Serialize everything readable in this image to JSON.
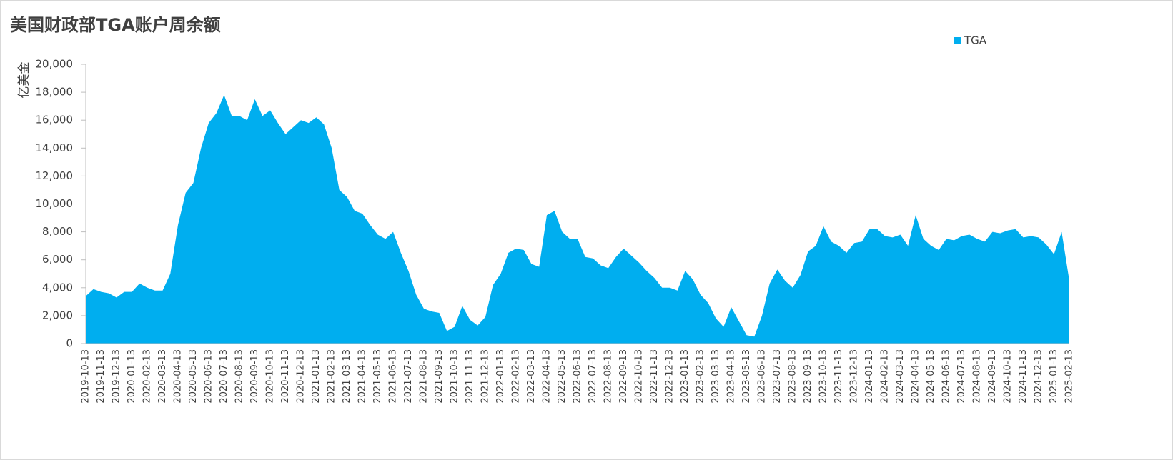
{
  "chart_data": {
    "type": "area",
    "title": "美国财政部TGA账户周余额",
    "y_label": "亿美金",
    "categories": [
      "2019-10-13",
      null,
      "2019-11-13",
      null,
      "2019-12-13",
      null,
      "2020-01-13",
      null,
      "2020-02-13",
      null,
      "2020-03-13",
      null,
      "2020-04-13",
      null,
      "2020-05-13",
      null,
      "2020-06-13",
      null,
      "2020-07-13",
      null,
      "2020-08-13",
      null,
      "2020-09-13",
      null,
      "2020-10-13",
      null,
      "2020-11-13",
      null,
      "2020-12-13",
      null,
      "2021-01-13",
      null,
      "2021-02-13",
      null,
      "2021-03-13",
      null,
      "2021-04-13",
      null,
      "2021-05-13",
      null,
      "2021-06-13",
      null,
      "2021-07-13",
      null,
      "2021-08-13",
      null,
      "2021-09-13",
      null,
      "2021-10-13",
      null,
      "2021-11-13",
      null,
      "2021-12-13",
      null,
      "2022-01-13",
      null,
      "2022-02-13",
      null,
      "2022-03-13",
      null,
      "2022-04-13",
      null,
      "2022-05-13",
      null,
      "2022-06-13",
      null,
      "2022-07-13",
      null,
      "2022-08-13",
      null,
      "2022-09-13",
      null,
      "2022-10-13",
      null,
      "2022-11-13",
      null,
      "2022-12-13",
      null,
      "2023-01-13",
      null,
      "2023-02-13",
      null,
      "2023-03-13",
      null,
      "2023-04-13",
      null,
      "2023-05-13",
      null,
      "2023-06-13",
      null,
      "2023-07-13",
      null,
      "2023-08-13",
      null,
      "2023-09-13",
      null,
      "2023-10-13",
      null,
      "2023-11-13",
      null,
      "2023-12-13",
      null,
      "2024-01-13",
      null,
      "2024-02-13",
      null,
      "2024-03-13",
      null,
      "2024-04-13",
      null,
      "2024-05-13",
      null,
      "2024-06-13",
      null,
      "2024-07-13",
      null,
      "2024-08-13",
      null,
      "2024-09-13",
      null,
      "2024-10-13",
      null,
      "2024-11-13",
      null,
      "2024-12-13",
      null,
      "2025-01-13",
      null,
      "2025-02-13"
    ],
    "series": [
      {
        "name": "TGA",
        "color": "#00aeef",
        "values": [
          3400,
          3900,
          3700,
          3600,
          3300,
          3700,
          3700,
          4300,
          4000,
          3800,
          3800,
          5000,
          8500,
          10800,
          11500,
          14000,
          15800,
          16500,
          17800,
          16300,
          16300,
          16000,
          17500,
          16300,
          16700,
          15800,
          15000,
          15500,
          16000,
          15800,
          16200,
          15700,
          14000,
          11000,
          10500,
          9500,
          9300,
          8500,
          7800,
          7500,
          8000,
          6500,
          5200,
          3500,
          2500,
          2300,
          2200,
          900,
          1200,
          2700,
          1700,
          1300,
          1900,
          4200,
          5000,
          6500,
          6800,
          6700,
          5700,
          5500,
          9200,
          9500,
          8000,
          7500,
          7500,
          6200,
          6100,
          5600,
          5400,
          6200,
          6800,
          6300,
          5800,
          5200,
          4700,
          4000,
          4000,
          3800,
          5200,
          4600,
          3500,
          2900,
          1800,
          1200,
          2600,
          1600,
          600,
          500,
          2000,
          4300,
          5300,
          4500,
          4000,
          4900,
          6600,
          7000,
          8400,
          7300,
          7000,
          6500,
          7200,
          7300,
          8200,
          8200,
          7700,
          7600,
          7800,
          7000,
          9200,
          7500,
          7000,
          6700,
          7500,
          7400,
          7700,
          7800,
          7500,
          7300,
          8000,
          7900,
          8100,
          8200,
          7600,
          7700,
          7600,
          7100,
          6400,
          8000,
          4500
        ]
      }
    ],
    "ylim": [
      0,
      20000
    ],
    "yticks": [
      0,
      {
        "value": 2000,
        "label": "2,000"
      },
      {
        "value": 4000,
        "label": "4,000"
      },
      {
        "value": 6000,
        "label": "6,000"
      },
      {
        "value": 8000,
        "label": "8,000"
      },
      {
        "value": 10000,
        "label": "10,000"
      },
      {
        "value": 12000,
        "label": "12,000"
      },
      {
        "value": 14000,
        "label": "14,000"
      },
      {
        "value": 16000,
        "label": "16,000"
      },
      {
        "value": 18000,
        "label": "18,000"
      },
      {
        "value": 20000,
        "label": "20,000"
      }
    ],
    "legend": "top-right"
  }
}
